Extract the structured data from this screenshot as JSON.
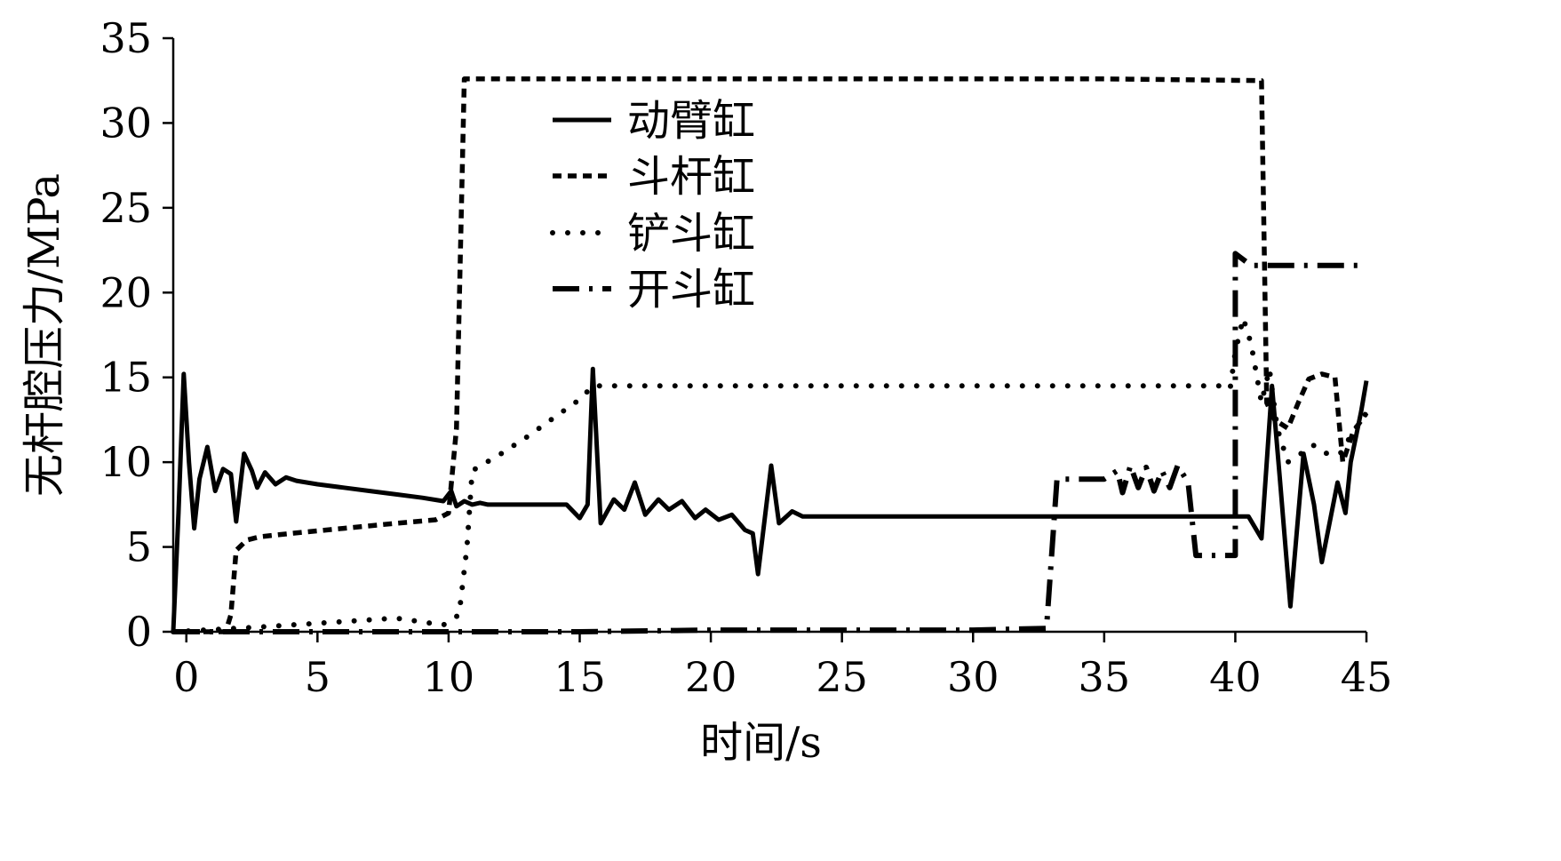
{
  "chart_data": {
    "type": "line",
    "title": "",
    "xlabel": "时间/s",
    "ylabel": "无杆腔压力/MPa",
    "xlim": [
      -0.5,
      45
    ],
    "ylim": [
      0,
      35
    ],
    "x_ticks": [
      0,
      5,
      10,
      15,
      20,
      25,
      30,
      35,
      40,
      45
    ],
    "y_ticks": [
      0,
      5,
      10,
      15,
      20,
      25,
      30,
      35
    ],
    "grid": false,
    "legend_position": "top-center",
    "series": [
      {
        "name": "动臂缸",
        "style": "solid",
        "points": [
          [
            -0.5,
            0
          ],
          [
            -0.3,
            7
          ],
          [
            -0.1,
            15.2
          ],
          [
            0.1,
            10
          ],
          [
            0.3,
            6.1
          ],
          [
            0.5,
            9
          ],
          [
            0.8,
            10.9
          ],
          [
            1.1,
            8.3
          ],
          [
            1.4,
            9.6
          ],
          [
            1.7,
            9.3
          ],
          [
            1.9,
            6.5
          ],
          [
            2.2,
            10.5
          ],
          [
            2.5,
            9.5
          ],
          [
            2.7,
            8.5
          ],
          [
            3,
            9.4
          ],
          [
            3.4,
            8.7
          ],
          [
            3.8,
            9.1
          ],
          [
            4.2,
            8.9
          ],
          [
            5,
            8.7
          ],
          [
            6,
            8.5
          ],
          [
            7,
            8.3
          ],
          [
            8,
            8.1
          ],
          [
            9,
            7.9
          ],
          [
            9.8,
            7.7
          ],
          [
            10.1,
            8.3
          ],
          [
            10.3,
            7.4
          ],
          [
            10.6,
            7.7
          ],
          [
            10.9,
            7.5
          ],
          [
            11.2,
            7.6
          ],
          [
            11.5,
            7.5
          ],
          [
            13,
            7.5
          ],
          [
            14.5,
            7.5
          ],
          [
            15,
            6.7
          ],
          [
            15.3,
            7.5
          ],
          [
            15.5,
            15.5
          ],
          [
            15.8,
            6.4
          ],
          [
            16.3,
            7.8
          ],
          [
            16.7,
            7.2
          ],
          [
            17.1,
            8.8
          ],
          [
            17.5,
            6.9
          ],
          [
            18,
            7.8
          ],
          [
            18.4,
            7.2
          ],
          [
            18.9,
            7.7
          ],
          [
            19.4,
            6.7
          ],
          [
            19.8,
            7.2
          ],
          [
            20.3,
            6.6
          ],
          [
            20.8,
            6.9
          ],
          [
            21.3,
            6
          ],
          [
            21.6,
            5.8
          ],
          [
            21.8,
            3.4
          ],
          [
            22.3,
            9.8
          ],
          [
            22.6,
            6.4
          ],
          [
            23.1,
            7.1
          ],
          [
            23.5,
            6.8
          ],
          [
            25,
            6.8
          ],
          [
            30,
            6.8
          ],
          [
            35,
            6.8
          ],
          [
            40,
            6.8
          ],
          [
            40.5,
            6.8
          ],
          [
            41,
            5.5
          ],
          [
            41.4,
            14.5
          ],
          [
            41.7,
            9
          ],
          [
            42.1,
            1.5
          ],
          [
            42.6,
            10.5
          ],
          [
            43,
            7.5
          ],
          [
            43.3,
            4.1
          ],
          [
            43.9,
            8.8
          ],
          [
            44.2,
            7
          ],
          [
            44.4,
            10
          ],
          [
            44.8,
            13
          ],
          [
            45,
            14.8
          ]
        ]
      },
      {
        "name": "斗杆缸",
        "style": "dashed",
        "points": [
          [
            -0.5,
            0
          ],
          [
            1.5,
            0
          ],
          [
            1.7,
            1
          ],
          [
            1.9,
            4.8
          ],
          [
            2.3,
            5.4
          ],
          [
            2.8,
            5.6
          ],
          [
            4,
            5.8
          ],
          [
            6,
            6.1
          ],
          [
            8,
            6.4
          ],
          [
            9.5,
            6.6
          ],
          [
            10,
            7
          ],
          [
            10.3,
            12
          ],
          [
            10.6,
            32.6
          ],
          [
            15,
            32.6
          ],
          [
            20,
            32.6
          ],
          [
            25,
            32.6
          ],
          [
            30,
            32.6
          ],
          [
            35,
            32.6
          ],
          [
            41,
            32.5
          ],
          [
            41.2,
            13.5
          ],
          [
            41.5,
            12.5
          ],
          [
            42,
            12
          ],
          [
            42.4,
            13.5
          ],
          [
            42.8,
            14.9
          ],
          [
            43.3,
            15.2
          ],
          [
            43.8,
            15
          ],
          [
            44.1,
            10
          ],
          [
            44.5,
            11.8
          ],
          [
            45,
            12.9
          ]
        ]
      },
      {
        "name": "铲斗缸",
        "style": "dotted",
        "points": [
          [
            -0.5,
            0
          ],
          [
            3,
            0.3
          ],
          [
            6,
            0.6
          ],
          [
            8,
            0.8
          ],
          [
            9.8,
            0.4
          ],
          [
            10.4,
            1
          ],
          [
            10.7,
            5
          ],
          [
            10.9,
            9.5
          ],
          [
            12,
            10.5
          ],
          [
            13,
            11.5
          ],
          [
            14,
            12.6
          ],
          [
            15,
            13.7
          ],
          [
            15.5,
            14.5
          ],
          [
            20,
            14.5
          ],
          [
            25,
            14.5
          ],
          [
            30,
            14.5
          ],
          [
            35,
            14.5
          ],
          [
            38,
            14.5
          ],
          [
            39.5,
            14.5
          ],
          [
            39.8,
            14.3
          ],
          [
            40,
            16.5
          ],
          [
            40.3,
            18.5
          ],
          [
            40.6,
            17
          ],
          [
            41,
            13.5
          ],
          [
            41.3,
            15.5
          ],
          [
            41.6,
            12
          ],
          [
            42,
            10
          ],
          [
            42.5,
            10.5
          ],
          [
            43,
            11
          ],
          [
            43.5,
            10.5
          ],
          [
            44,
            10.5
          ],
          [
            44.5,
            11.8
          ],
          [
            45,
            12.9
          ]
        ]
      },
      {
        "name": "开斗缸",
        "style": "dash-dot",
        "points": [
          [
            -0.5,
            0
          ],
          [
            5,
            0
          ],
          [
            10,
            0
          ],
          [
            15,
            0
          ],
          [
            20,
            0.1
          ],
          [
            25,
            0.1
          ],
          [
            30,
            0.1
          ],
          [
            32.8,
            0.2
          ],
          [
            33.2,
            9
          ],
          [
            35,
            9
          ],
          [
            35.5,
            9.5
          ],
          [
            35.7,
            8.2
          ],
          [
            36,
            9.8
          ],
          [
            36.3,
            8.5
          ],
          [
            36.6,
            9.7
          ],
          [
            36.9,
            8.3
          ],
          [
            37.2,
            9.5
          ],
          [
            37.5,
            8.5
          ],
          [
            37.8,
            9.8
          ],
          [
            38.2,
            8.8
          ],
          [
            38.5,
            4.5
          ],
          [
            40,
            4.5
          ],
          [
            40,
            22.3
          ],
          [
            40.6,
            21.6
          ],
          [
            45,
            21.6
          ]
        ]
      }
    ]
  }
}
